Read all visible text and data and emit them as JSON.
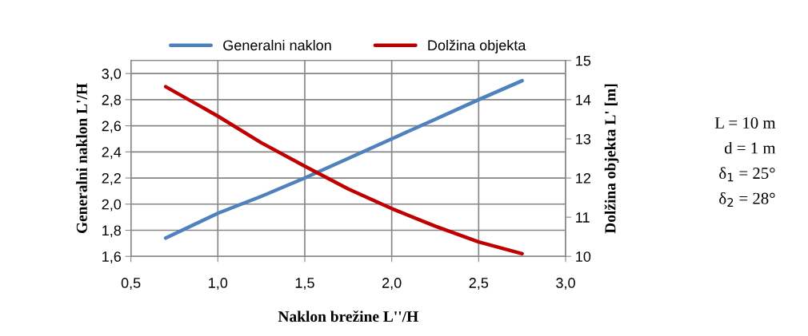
{
  "chart_data": {
    "type": "line",
    "xlabel": "Naklon brežine L''/H",
    "ylabel": "Generalni naklon L'/H",
    "y2label": "Dolžina objekta L' [m]",
    "series": [
      {
        "name": "Generalni naklon",
        "color": "#4f81bd",
        "x": [
          0.7,
          1.0,
          1.25,
          1.5,
          1.75,
          2.0,
          2.25,
          2.5,
          2.75
        ],
        "values": [
          1.74,
          1.93,
          2.06,
          2.2,
          2.35,
          2.5,
          2.65,
          2.8,
          2.945
        ]
      },
      {
        "name": "Dolžina objekta",
        "color": "#c00000",
        "axis": "y2",
        "x": [
          0.7,
          1.0,
          1.25,
          1.5,
          1.75,
          2.0,
          2.25,
          2.5,
          2.75
        ],
        "values": [
          14.33,
          13.58,
          12.9,
          12.3,
          11.72,
          11.22,
          10.77,
          10.37,
          10.07
        ]
      }
    ],
    "xlim": [
      0.5,
      3.0
    ],
    "xticks": [
      {
        "value": 0.5,
        "label": "0,5"
      },
      {
        "value": 1.0,
        "label": "1,0"
      },
      {
        "value": 1.5,
        "label": "1,5"
      },
      {
        "value": 2.0,
        "label": "2,0"
      },
      {
        "value": 2.5,
        "label": "2,5"
      },
      {
        "value": 3.0,
        "label": "3,0"
      }
    ],
    "ylim": [
      1.6,
      3.1
    ],
    "yticks": [
      {
        "value": 1.6,
        "label": "1,6"
      },
      {
        "value": 1.8,
        "label": "1,8"
      },
      {
        "value": 2.0,
        "label": "2,0"
      },
      {
        "value": 2.2,
        "label": "2,2"
      },
      {
        "value": 2.4,
        "label": "2,4"
      },
      {
        "value": 2.6,
        "label": "2,6"
      },
      {
        "value": 2.8,
        "label": "2,8"
      },
      {
        "value": 3.0,
        "label": "3,0"
      }
    ],
    "y2lim": [
      10,
      15
    ],
    "y2ticks": [
      10,
      11,
      12,
      13,
      14,
      15
    ],
    "annotations": [
      "L = 10 m",
      "d = 1 m",
      "δ$_{1}$ = 25°",
      "δ$_{2}$ = 28°"
    ],
    "grid": true,
    "legend": "top",
    "marker": "none",
    "line_style": "solid"
  }
}
